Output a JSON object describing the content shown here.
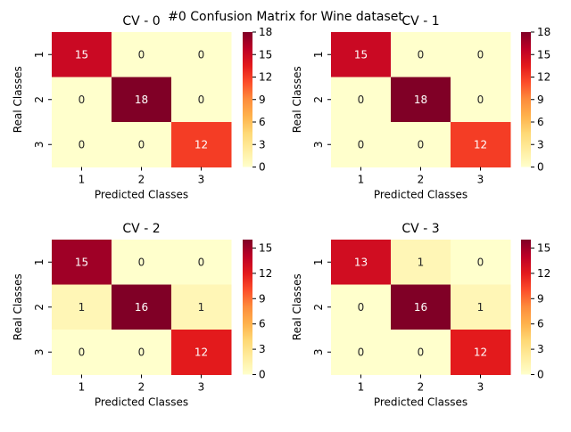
{
  "figure_title": "#0 Confusion Matrix for Wine dataset",
  "chart_data": [
    {
      "type": "heatmap",
      "title": "CV - 0",
      "xlabel": "Predicted Classes",
      "ylabel": "Real Classes",
      "x_categories": [
        "1",
        "2",
        "3"
      ],
      "y_categories": [
        "1",
        "2",
        "3"
      ],
      "values": [
        [
          15,
          0,
          0
        ],
        [
          0,
          18,
          0
        ],
        [
          0,
          0,
          12
        ]
      ],
      "colormap": "YlOrRd",
      "colorbar": {
        "min": 0,
        "max": 18,
        "ticks": [
          0,
          3,
          6,
          9,
          12,
          15,
          18
        ]
      }
    },
    {
      "type": "heatmap",
      "title": "CV - 1",
      "xlabel": "Predicted Classes",
      "ylabel": "Real Classes",
      "x_categories": [
        "1",
        "2",
        "3"
      ],
      "y_categories": [
        "1",
        "2",
        "3"
      ],
      "values": [
        [
          15,
          0,
          0
        ],
        [
          0,
          18,
          0
        ],
        [
          0,
          0,
          12
        ]
      ],
      "colormap": "YlOrRd",
      "colorbar": {
        "min": 0,
        "max": 18,
        "ticks": [
          0,
          3,
          6,
          9,
          12,
          15,
          18
        ]
      }
    },
    {
      "type": "heatmap",
      "title": "CV - 2",
      "xlabel": "Predicted Classes",
      "ylabel": "Real Classes",
      "x_categories": [
        "1",
        "2",
        "3"
      ],
      "y_categories": [
        "1",
        "2",
        "3"
      ],
      "values": [
        [
          15,
          0,
          0
        ],
        [
          1,
          16,
          1
        ],
        [
          0,
          0,
          12
        ]
      ],
      "colormap": "YlOrRd",
      "colorbar": {
        "min": 0,
        "max": 16,
        "ticks": [
          0,
          3,
          6,
          9,
          12,
          15
        ]
      }
    },
    {
      "type": "heatmap",
      "title": "CV - 3",
      "xlabel": "Predicted Classes",
      "ylabel": "Real Classes",
      "x_categories": [
        "1",
        "2",
        "3"
      ],
      "y_categories": [
        "1",
        "2",
        "3"
      ],
      "values": [
        [
          13,
          1,
          0
        ],
        [
          0,
          16,
          1
        ],
        [
          0,
          0,
          12
        ]
      ],
      "colormap": "YlOrRd",
      "colorbar": {
        "min": 0,
        "max": 16,
        "ticks": [
          0,
          3,
          6,
          9,
          12,
          15
        ]
      }
    }
  ]
}
